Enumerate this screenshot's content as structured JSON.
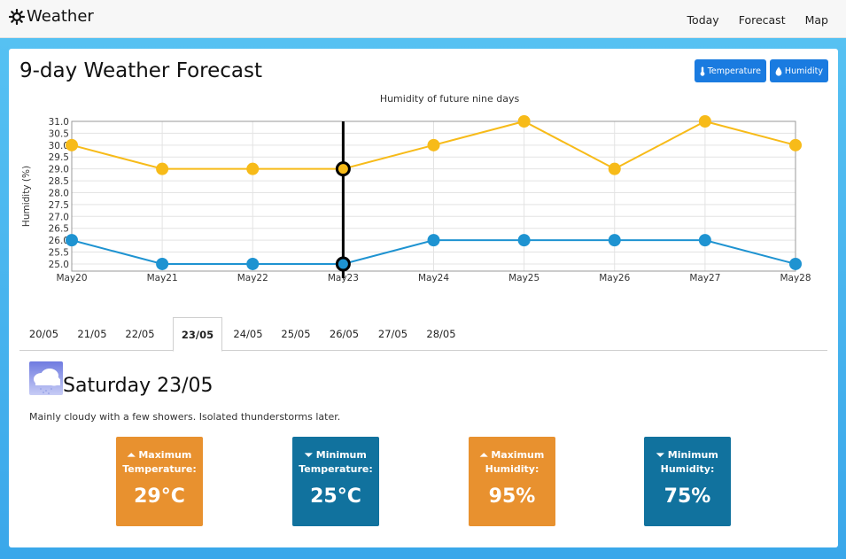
{
  "nav": {
    "brand": "Weather",
    "links": [
      "Today",
      "Forecast",
      "Map"
    ]
  },
  "page": {
    "title": "9-day Weather Forecast",
    "buttons": {
      "temperature": "Temperature",
      "humidity": "Humidity"
    },
    "accent_color": "#1a7be0"
  },
  "chart_data": {
    "type": "line",
    "title": "Humidity of future nine days",
    "xlabel": "",
    "ylabel": "Humidity (%)",
    "categories": [
      "May20",
      "May21",
      "May22",
      "May23",
      "May24",
      "May25",
      "May26",
      "May27",
      "May28"
    ],
    "ylim": [
      24.7,
      31.0
    ],
    "yticks": [
      "31.0",
      "30.5",
      "30.0",
      "29.5",
      "29.0",
      "28.5",
      "28.0",
      "27.5",
      "27.0",
      "26.5",
      "26.0",
      "25.5",
      "25.0"
    ],
    "series": [
      {
        "color": "#f7bb19",
        "values": [
          30,
          29,
          29,
          29,
          30,
          31,
          29,
          31,
          30
        ]
      },
      {
        "color": "#1e93d1",
        "values": [
          26,
          25,
          25,
          25,
          26,
          26,
          26,
          26,
          25
        ]
      }
    ],
    "highlight_index": 3,
    "grid": true,
    "legend": "none"
  },
  "tabs": [
    "20/05",
    "21/05",
    "22/05",
    "23/05",
    "24/05",
    "25/05",
    "26/05",
    "27/05",
    "28/05"
  ],
  "active_tab": 3,
  "day": {
    "title": "Saturday 23/05",
    "description": "Mainly cloudy with a few showers. Isolated thunderstorms later.",
    "icon": "cloud-rain-icon"
  },
  "stats": [
    {
      "label_line1": "Maximum",
      "label_line2": "Temperature:",
      "value": "29°C",
      "arrow": "up",
      "color": "#e8912f"
    },
    {
      "label_line1": "Minimum",
      "label_line2": "Temperature:",
      "value": "25°C",
      "arrow": "down",
      "color": "#11729e"
    },
    {
      "label_line1": "Maximum",
      "label_line2": "Humidity:",
      "value": "95%",
      "arrow": "up",
      "color": "#e8912f"
    },
    {
      "label_line1": "Minimum",
      "label_line2": "Humidity:",
      "value": "75%",
      "arrow": "down",
      "color": "#11729e"
    }
  ]
}
